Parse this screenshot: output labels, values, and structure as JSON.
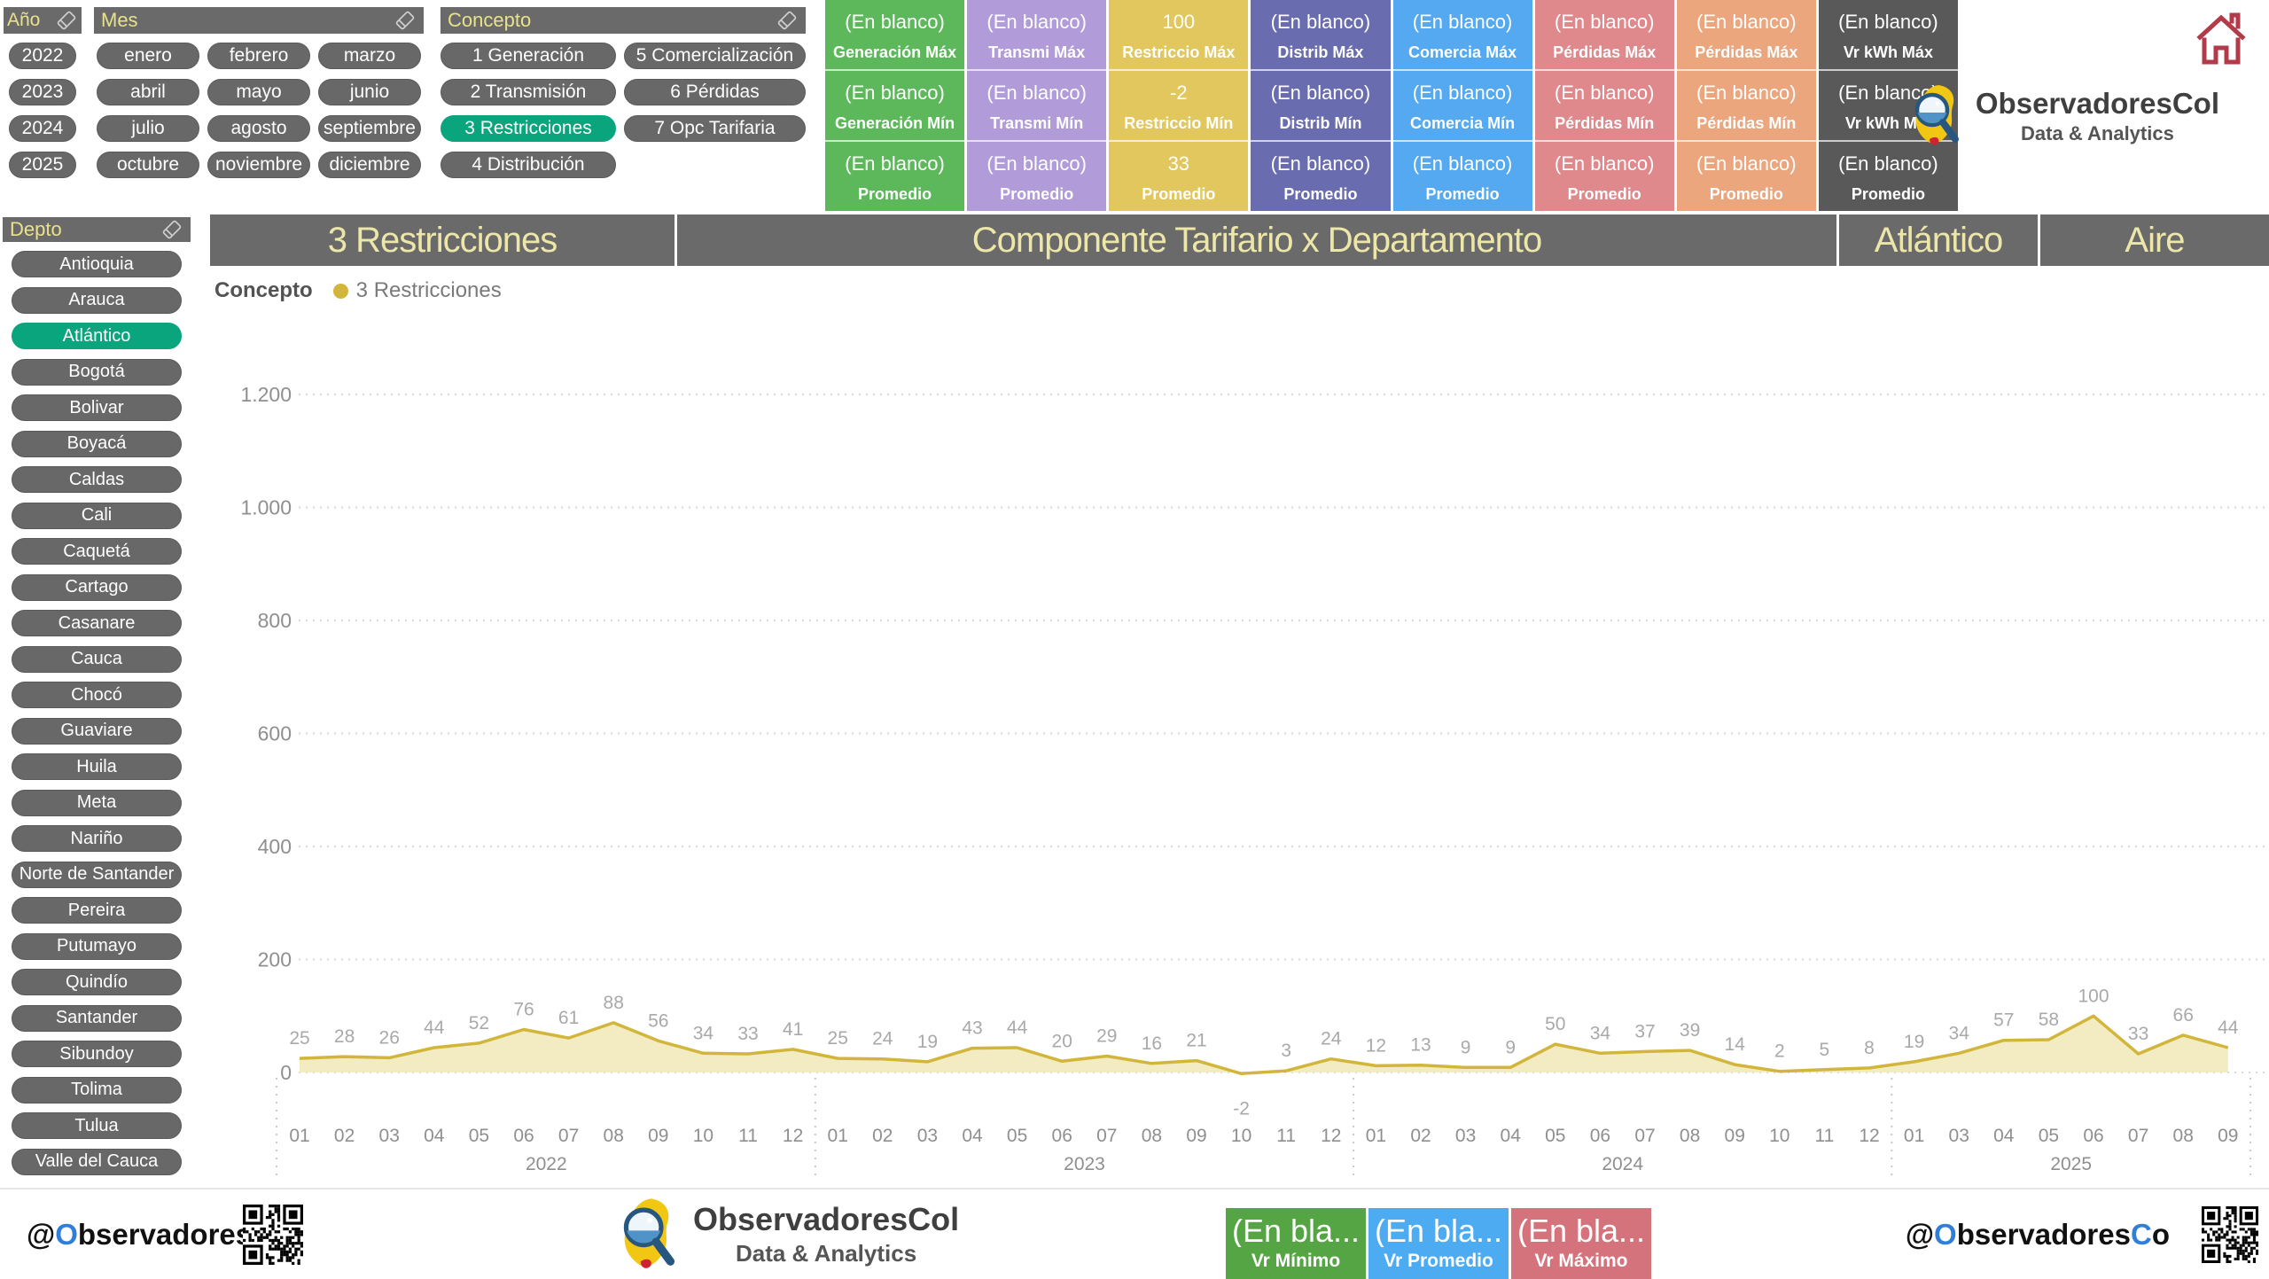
{
  "colors": {
    "panel_gray": "#6a6a6a",
    "button_gray": "#686868",
    "selected_green": "#0ba57d",
    "header_text": "#e9e28a",
    "title_text": "#ece7a8",
    "brand_blue": "#2f7ed8",
    "house_red": "#b23a49"
  },
  "filters": {
    "ano": {
      "title": "Año",
      "items": [
        "2022",
        "2023",
        "2024",
        "2025"
      ]
    },
    "mes": {
      "title": "Mes",
      "items": [
        "enero",
        "febrero",
        "marzo",
        "abril",
        "mayo",
        "junio",
        "julio",
        "agosto",
        "septiembre",
        "octubre",
        "noviembre",
        "diciembre"
      ]
    },
    "concepto": {
      "title": "Concepto",
      "col1": [
        "1 Generación",
        "2 Transmisión",
        "3 Restricciones",
        "4 Distribución"
      ],
      "col2": [
        "5 Comercialización",
        "6 Pérdidas",
        "7 Opc Tarifaria"
      ],
      "selected": "3 Restricciones"
    }
  },
  "sidebar": {
    "title": "Depto",
    "selected": "Atlántico",
    "items": [
      "Antioquia",
      "Arauca",
      "Atlántico",
      "Bogotá",
      "Bolivar",
      "Boyacá",
      "Caldas",
      "Cali",
      "Caquetá",
      "Cartago",
      "Casanare",
      "Cauca",
      "Chocó",
      "Guaviare",
      "Huila",
      "Meta",
      "Nariño",
      "Norte de Santander",
      "Pereira",
      "Putumayo",
      "Quindío",
      "Santander",
      "Sibundoy",
      "Tolima",
      "Tulua",
      "Valle del Cauca"
    ]
  },
  "kpi_grid": {
    "columns": [
      {
        "color": "#5cb85a",
        "max_value": "(En blanco)",
        "max_label": "Generación Máx",
        "min_value": "(En blanco)",
        "min_label": "Generación Mín",
        "avg_value": "(En blanco)",
        "avg_label": "Promedio"
      },
      {
        "color": "#b19cd9",
        "max_value": "(En blanco)",
        "max_label": "Transmi Máx",
        "min_value": "(En blanco)",
        "min_label": "Transmi Mín",
        "avg_value": "(En blanco)",
        "avg_label": "Promedio"
      },
      {
        "color": "#e2c75f",
        "max_value": "100",
        "max_label": "Restriccio Máx",
        "min_value": "-2",
        "min_label": "Restriccio Mín",
        "avg_value": "33",
        "avg_label": "Promedio"
      },
      {
        "color": "#6a6cb0",
        "max_value": "(En blanco)",
        "max_label": "Distrib Máx",
        "min_value": "(En blanco)",
        "min_label": "Distrib Mín",
        "avg_value": "(En blanco)",
        "avg_label": "Promedio"
      },
      {
        "color": "#55a9f0",
        "max_value": "(En blanco)",
        "max_label": "Comercia Máx",
        "min_value": "(En blanco)",
        "min_label": "Comercia Mín",
        "avg_value": "(En blanco)",
        "avg_label": "Promedio"
      },
      {
        "color": "#e0898c",
        "max_value": "(En blanco)",
        "max_label": "Pérdidas Máx",
        "min_value": "(En blanco)",
        "min_label": "Pérdidas Mín",
        "avg_value": "(En blanco)",
        "avg_label": "Promedio"
      },
      {
        "color": "#eba67d",
        "max_value": "(En blanco)",
        "max_label": "Pérdidas Máx",
        "min_value": "(En blanco)",
        "min_label": "Pérdidas Mín",
        "avg_value": "(En blanco)",
        "avg_label": "Promedio"
      },
      {
        "color": "#595959",
        "max_value": "(En blanco)",
        "max_label": "Vr kWh Máx",
        "min_value": "(En blanco)",
        "min_label": "Vr kWh Mín",
        "avg_value": "(En blanco)",
        "avg_label": "Promedio"
      }
    ]
  },
  "title_bar": {
    "segments": [
      "3 Restricciones",
      "Componente Tarifario x Departamento",
      "Atlántico",
      "Aire"
    ]
  },
  "brand": {
    "name": "ObservadoresCol",
    "tagline": "Data & Analytics"
  },
  "chart_data": {
    "type": "area",
    "legend_title": "Concepto",
    "series_name": "3 Restricciones",
    "line_color": "#d2b63c",
    "fill_color": "#f1e7b6",
    "grid": "dotted-horizontal",
    "legend_position": "top-left",
    "ylim": [
      0,
      1200
    ],
    "yticks": [
      0,
      200,
      400,
      600,
      800,
      1000,
      1200
    ],
    "ytick_labels": [
      "0",
      "200",
      "400",
      "600",
      "800",
      "1.000",
      "1.200"
    ],
    "groups": [
      {
        "year": "2022",
        "months": [
          "01",
          "02",
          "03",
          "04",
          "05",
          "06",
          "07",
          "08",
          "09",
          "10",
          "11",
          "12"
        ],
        "values": [
          25,
          28,
          26,
          44,
          52,
          76,
          61,
          88,
          56,
          34,
          33,
          41
        ]
      },
      {
        "year": "2023",
        "months": [
          "01",
          "02",
          "03",
          "04",
          "05",
          "06",
          "07",
          "08",
          "09",
          "10",
          "11",
          "12"
        ],
        "values": [
          25,
          24,
          19,
          43,
          44,
          20,
          29,
          16,
          21,
          -2,
          3,
          24
        ]
      },
      {
        "year": "2024",
        "months": [
          "01",
          "02",
          "03",
          "04",
          "05",
          "06",
          "07",
          "08",
          "09",
          "10",
          "11",
          "12"
        ],
        "values": [
          12,
          13,
          9,
          9,
          50,
          34,
          37,
          39,
          14,
          2,
          5,
          8
        ]
      },
      {
        "year": "2025",
        "months": [
          "01",
          "03",
          "04",
          "05",
          "06",
          "07",
          "08",
          "09"
        ],
        "values": [
          19,
          34,
          57,
          58,
          100,
          33,
          66,
          44
        ]
      }
    ]
  },
  "footer": {
    "handle_parts": [
      "@",
      "O",
      "bservadores",
      "C",
      "o"
    ],
    "legend": [
      {
        "value": "(En bla...",
        "label": "Vr Mínimo",
        "color": "#56a545"
      },
      {
        "value": "(En bla...",
        "label": "Vr Promedio",
        "color": "#4dacf1"
      },
      {
        "value": "(En bla...",
        "label": "Vr Máximo",
        "color": "#d5737c"
      }
    ]
  }
}
